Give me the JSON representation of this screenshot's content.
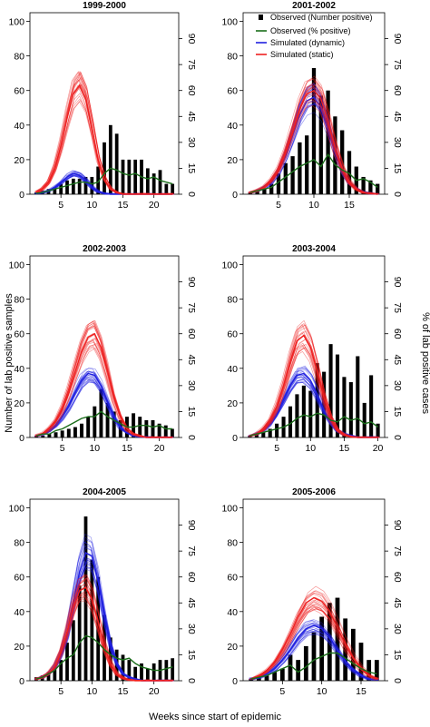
{
  "figure": {
    "left_label": "Number of lab positive samples",
    "right_label": "% of lab positive cases",
    "bottom_label": "Weeks since start of epidemic"
  },
  "legend": [
    {
      "label": "Observed (Number positive)",
      "color": "#000000",
      "kind": "bar"
    },
    {
      "label": "Observed (% positive)",
      "color": "#1a6e1a",
      "kind": "line"
    },
    {
      "label": "Simulated (dynamic)",
      "color": "#2020e0",
      "kind": "line"
    },
    {
      "label": "Simulated (static)",
      "color": "#ee2020",
      "kind": "line"
    }
  ],
  "chart_data": [
    {
      "type": "bar",
      "title": "1999-2000",
      "xlim": [
        0,
        24
      ],
      "ylim": [
        0,
        105
      ],
      "y2lim": [
        0,
        105
      ],
      "xticks": [
        5,
        10,
        15,
        20
      ],
      "yticks": [
        0,
        20,
        40,
        60,
        80,
        100
      ],
      "y2ticks": [
        0,
        15,
        30,
        45,
        60,
        75,
        90
      ],
      "x": [
        1,
        2,
        3,
        4,
        5,
        6,
        7,
        8,
        9,
        10,
        11,
        12,
        13,
        14,
        15,
        16,
        17,
        18,
        19,
        20,
        21,
        22,
        23
      ],
      "observed_count": [
        1,
        2,
        3,
        4,
        6,
        8,
        9,
        9,
        10,
        10,
        16,
        30,
        40,
        35,
        20,
        20,
        20,
        20,
        15,
        12,
        14,
        6,
        6
      ],
      "observed_pct": [
        0.5,
        1,
        2,
        3,
        4,
        5,
        6,
        7,
        7,
        6,
        7,
        12,
        15,
        14,
        12,
        11,
        12,
        10,
        9,
        10,
        8,
        7,
        6
      ],
      "sim_dynamic": [
        0.5,
        1,
        2,
        4,
        7,
        10,
        12,
        11,
        8,
        4,
        1.5,
        0.5,
        0,
        0,
        0,
        0,
        0,
        0,
        0,
        0,
        0,
        0,
        0
      ],
      "sim_static": [
        1,
        3,
        7,
        15,
        28,
        44,
        58,
        63,
        55,
        38,
        20,
        9,
        3,
        1,
        0,
        0,
        0,
        0,
        0,
        0,
        0,
        0,
        0
      ]
    },
    {
      "type": "bar",
      "title": "2001-2002",
      "xlim": [
        0,
        20
      ],
      "ylim": [
        0,
        105
      ],
      "y2lim": [
        0,
        105
      ],
      "xticks": [
        5,
        10,
        15
      ],
      "yticks": [
        0,
        20,
        40,
        60,
        80,
        100
      ],
      "y2ticks": [
        0,
        15,
        30,
        45,
        60,
        75,
        90
      ],
      "x": [
        1,
        2,
        3,
        4,
        5,
        6,
        7,
        8,
        9,
        10,
        11,
        12,
        13,
        14,
        15,
        16,
        17,
        18,
        19
      ],
      "observed_count": [
        1,
        2,
        3,
        6,
        12,
        18,
        22,
        30,
        34,
        73,
        57,
        60,
        45,
        37,
        25,
        16,
        10,
        8,
        6
      ],
      "observed_pct": [
        1,
        2,
        3,
        4,
        7,
        10,
        13,
        16,
        18,
        20,
        16,
        23,
        17,
        14,
        12,
        8,
        9,
        7,
        4
      ],
      "sim_dynamic": [
        1,
        2,
        4,
        7,
        13,
        22,
        34,
        46,
        54,
        56,
        50,
        38,
        24,
        13,
        6,
        3,
        1,
        0.5,
        0
      ],
      "sim_static": [
        1,
        2,
        4,
        8,
        14,
        24,
        36,
        49,
        58,
        60,
        55,
        42,
        27,
        15,
        7,
        3,
        1,
        0.5,
        0
      ]
    },
    {
      "type": "bar",
      "title": "2002-2003",
      "xlim": [
        0,
        23
      ],
      "ylim": [
        0,
        105
      ],
      "y2lim": [
        0,
        105
      ],
      "xticks": [
        5,
        10,
        15,
        20
      ],
      "yticks": [
        0,
        20,
        40,
        60,
        80,
        100
      ],
      "y2ticks": [
        0,
        15,
        30,
        45,
        60,
        75,
        90
      ],
      "x": [
        1,
        2,
        3,
        4,
        5,
        6,
        7,
        8,
        9,
        10,
        11,
        12,
        13,
        14,
        15,
        16,
        17,
        18,
        19,
        20,
        21,
        22
      ],
      "observed_count": [
        1,
        1,
        2,
        3,
        4,
        5,
        6,
        8,
        12,
        18,
        28,
        20,
        15,
        10,
        12,
        14,
        12,
        10,
        10,
        8,
        7,
        5
      ],
      "observed_pct": [
        1,
        2,
        2,
        4,
        5,
        7,
        9,
        11,
        12,
        12,
        15,
        12,
        10,
        8,
        6,
        6,
        7,
        7,
        6,
        7,
        5,
        5
      ],
      "sim_dynamic": [
        1,
        2,
        4,
        7,
        12,
        18,
        26,
        33,
        37,
        36,
        30,
        21,
        12,
        6,
        3,
        1,
        0.5,
        0,
        0,
        0,
        0,
        0
      ],
      "sim_static": [
        1,
        2,
        5,
        9,
        16,
        26,
        38,
        50,
        58,
        60,
        52,
        38,
        23,
        12,
        5,
        2,
        1,
        0,
        0,
        0,
        0,
        0
      ]
    },
    {
      "type": "bar",
      "title": "2003-2004",
      "xlim": [
        0,
        21
      ],
      "ylim": [
        0,
        105
      ],
      "y2lim": [
        0,
        105
      ],
      "xticks": [
        5,
        10,
        15,
        20
      ],
      "yticks": [
        0,
        20,
        40,
        60,
        80,
        100
      ],
      "y2ticks": [
        0,
        15,
        30,
        45,
        60,
        75,
        90
      ],
      "x": [
        1,
        2,
        3,
        4,
        5,
        6,
        7,
        8,
        9,
        10,
        11,
        12,
        13,
        14,
        15,
        16,
        17,
        18,
        19,
        20
      ],
      "observed_count": [
        1,
        2,
        3,
        5,
        8,
        12,
        18,
        25,
        30,
        27,
        43,
        38,
        54,
        48,
        35,
        32,
        47,
        20,
        36,
        8
      ],
      "observed_pct": [
        1,
        2,
        3,
        4,
        5,
        6,
        8,
        11,
        13,
        12,
        14,
        13,
        10,
        9,
        12,
        10,
        11,
        8,
        9,
        6
      ],
      "sim_dynamic": [
        1,
        2,
        4,
        8,
        14,
        22,
        30,
        36,
        37,
        33,
        25,
        16,
        9,
        4,
        2,
        1,
        0,
        0,
        0,
        0
      ],
      "sim_static": [
        1,
        2,
        5,
        10,
        18,
        30,
        44,
        56,
        59,
        52,
        38,
        23,
        11,
        4,
        1.5,
        0.5,
        0,
        0,
        0,
        0
      ]
    },
    {
      "type": "bar",
      "title": "2004-2005",
      "xlim": [
        0,
        24
      ],
      "ylim": [
        0,
        105
      ],
      "y2lim": [
        0,
        105
      ],
      "xticks": [
        5,
        10,
        15,
        20
      ],
      "yticks": [
        0,
        20,
        40,
        60,
        80,
        100
      ],
      "y2ticks": [
        0,
        15,
        30,
        45,
        60,
        75,
        90
      ],
      "x": [
        1,
        2,
        3,
        4,
        5,
        6,
        7,
        8,
        9,
        10,
        11,
        12,
        13,
        14,
        15,
        16,
        17,
        18,
        19,
        20,
        21,
        22,
        23
      ],
      "observed_count": [
        2,
        3,
        5,
        8,
        12,
        22,
        35,
        55,
        95,
        70,
        60,
        38,
        25,
        18,
        15,
        12,
        8,
        10,
        7,
        10,
        12,
        12,
        13
      ],
      "observed_pct": [
        1,
        2,
        4,
        6,
        10,
        13,
        15,
        22,
        26,
        25,
        22,
        18,
        15,
        13,
        12,
        13,
        10,
        8,
        7,
        6,
        6,
        7,
        8
      ],
      "sim_dynamic": [
        1,
        2,
        4,
        8,
        15,
        27,
        45,
        63,
        74,
        72,
        58,
        38,
        21,
        10,
        4,
        2,
        1,
        0,
        0,
        0,
        0,
        0,
        0
      ],
      "sim_static": [
        1,
        2,
        4,
        8,
        16,
        28,
        42,
        52,
        54,
        47,
        34,
        20,
        10,
        4,
        1.5,
        0.5,
        0,
        0,
        0,
        0,
        0,
        0,
        0
      ]
    },
    {
      "type": "bar",
      "title": "2005-2006",
      "xlim": [
        0,
        18
      ],
      "ylim": [
        0,
        105
      ],
      "y2lim": [
        0,
        105
      ],
      "xticks": [
        5,
        10,
        15
      ],
      "yticks": [
        0,
        20,
        40,
        60,
        80,
        100
      ],
      "y2ticks": [
        0,
        15,
        30,
        45,
        60,
        75,
        90
      ],
      "x": [
        1,
        2,
        3,
        4,
        5,
        6,
        7,
        8,
        9,
        10,
        11,
        12,
        13,
        14,
        15,
        16,
        17
      ],
      "observed_count": [
        1,
        2,
        3,
        5,
        7,
        15,
        12,
        20,
        28,
        37,
        45,
        48,
        36,
        30,
        22,
        12,
        12
      ],
      "observed_pct": [
        1,
        2,
        3,
        5,
        7,
        9,
        5,
        8,
        12,
        14,
        16,
        16,
        13,
        10,
        7,
        5,
        4
      ],
      "sim_dynamic": [
        1,
        2,
        4,
        7,
        12,
        18,
        25,
        30,
        32,
        30,
        25,
        18,
        11,
        6,
        3,
        1,
        0.5
      ],
      "sim_static": [
        1,
        3,
        6,
        11,
        18,
        27,
        37,
        45,
        48,
        46,
        40,
        31,
        21,
        13,
        7,
        3,
        1
      ]
    }
  ]
}
